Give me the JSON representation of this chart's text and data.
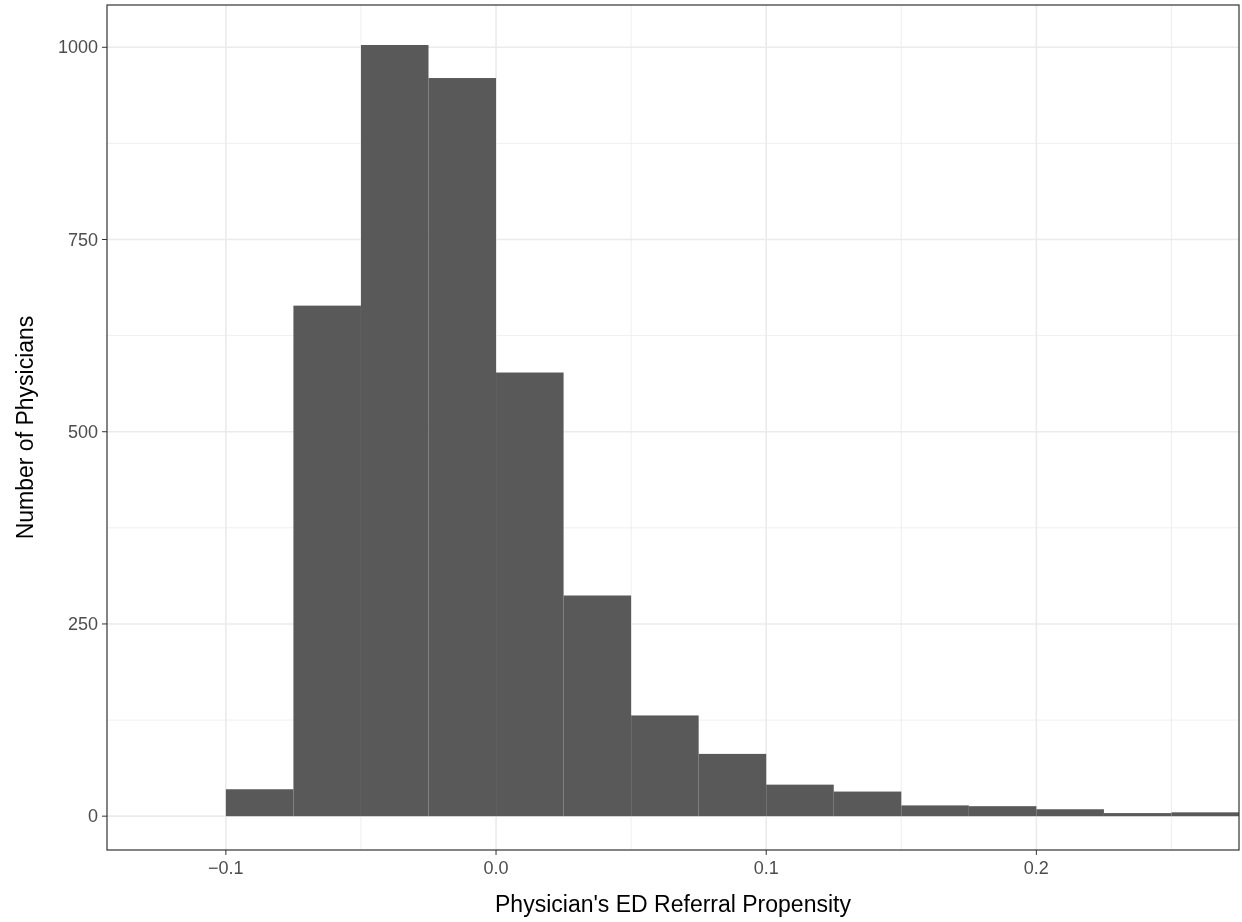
{
  "chart_data": {
    "type": "histogram",
    "xlabel": "Physician's ED Referral Propensity",
    "ylabel": "Number of Physicians",
    "bins": [
      -0.1,
      -0.075,
      -0.05,
      -0.025,
      0,
      0.025,
      0.05,
      0.075,
      0.1,
      0.125,
      0.15,
      0.175,
      0.2,
      0.225,
      0.25,
      0.275
    ],
    "values": [
      35,
      664,
      1003,
      960,
      577,
      287,
      131,
      81,
      41,
      32,
      14,
      13,
      9,
      4,
      5
    ],
    "color": "#595959",
    "xlim": [
      -0.144,
      0.275
    ],
    "xticks": [
      {
        "value": -0.1,
        "label": "−0.1"
      },
      {
        "value": -0.05,
        "label": null
      },
      {
        "value": 0,
        "label": "0.0"
      },
      {
        "value": 0.05,
        "label": null
      },
      {
        "value": 0.1,
        "label": "0.1"
      },
      {
        "value": 0.15,
        "label": null
      },
      {
        "value": 0.2,
        "label": "0.2"
      },
      {
        "value": 0.25,
        "label": null
      }
    ],
    "ylim": [
      -44,
      1055
    ],
    "yticks": [
      0,
      {
        "value": 125,
        "label": null
      },
      250,
      {
        "value": 375,
        "label": null
      },
      500,
      {
        "value": 625,
        "label": null
      },
      750,
      {
        "value": 875,
        "label": null
      },
      1000
    ],
    "grid": true
  }
}
